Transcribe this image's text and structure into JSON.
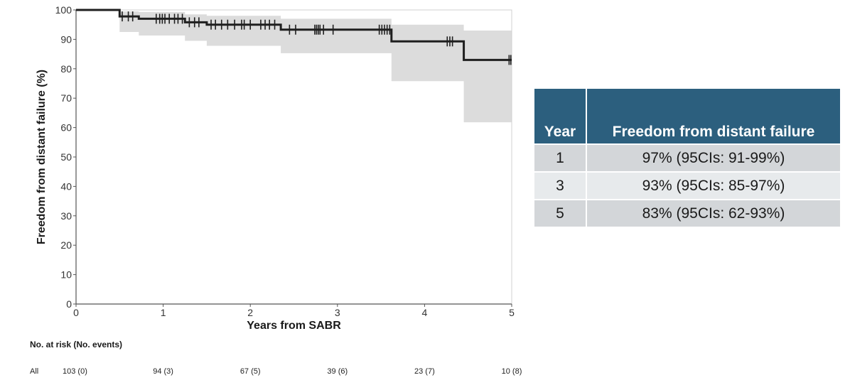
{
  "chart_data": {
    "type": "line",
    "subtype": "kaplan-meier",
    "xlabel": "Years from SABR",
    "ylabel": "Freedom from distant failure  (%)",
    "xlim": [
      0,
      5
    ],
    "ylim": [
      0,
      100
    ],
    "x_ticks": [
      "0",
      "1",
      "2",
      "3",
      "4",
      "5"
    ],
    "y_ticks": [
      "0",
      "10",
      "20",
      "30",
      "40",
      "50",
      "60",
      "70",
      "80",
      "90",
      "100"
    ],
    "grid": false,
    "line_color": "#1f1f1f",
    "ci_color": "#dcdcdc",
    "series": [
      {
        "steps": [
          {
            "x": 0,
            "y": 100
          },
          {
            "x": 0.5,
            "y": 97.8
          },
          {
            "x": 0.72,
            "y": 97
          },
          {
            "x": 1.25,
            "y": 95.8
          },
          {
            "x": 1.5,
            "y": 95
          },
          {
            "x": 2.35,
            "y": 93.3
          },
          {
            "x": 3.62,
            "y": 89.3
          },
          {
            "x": 4.45,
            "y": 83
          },
          {
            "x": 5,
            "y": 83
          }
        ],
        "ci_steps": [
          {
            "x": 0,
            "lower": 100,
            "upper": 100
          },
          {
            "x": 0.5,
            "lower": 92.5,
            "upper": 99.5
          },
          {
            "x": 0.72,
            "lower": 91.3,
            "upper": 99.3
          },
          {
            "x": 1.25,
            "lower": 89.5,
            "upper": 98.5
          },
          {
            "x": 1.5,
            "lower": 87.8,
            "upper": 98
          },
          {
            "x": 2.35,
            "lower": 85.3,
            "upper": 97
          },
          {
            "x": 3.62,
            "lower": 75.8,
            "upper": 95
          },
          {
            "x": 4.45,
            "lower": 61.8,
            "upper": 93
          },
          {
            "x": 5,
            "lower": 61.8,
            "upper": 93
          }
        ],
        "censor_marks": [
          {
            "x": 0.53,
            "y": 97.8
          },
          {
            "x": 0.6,
            "y": 97.8
          },
          {
            "x": 0.65,
            "y": 97.8
          },
          {
            "x": 0.92,
            "y": 97
          },
          {
            "x": 0.96,
            "y": 97
          },
          {
            "x": 0.99,
            "y": 97
          },
          {
            "x": 1.02,
            "y": 97
          },
          {
            "x": 1.07,
            "y": 97
          },
          {
            "x": 1.13,
            "y": 97
          },
          {
            "x": 1.17,
            "y": 97
          },
          {
            "x": 1.22,
            "y": 97
          },
          {
            "x": 1.3,
            "y": 95.8
          },
          {
            "x": 1.36,
            "y": 95.8
          },
          {
            "x": 1.41,
            "y": 95.8
          },
          {
            "x": 1.55,
            "y": 95
          },
          {
            "x": 1.6,
            "y": 95
          },
          {
            "x": 1.67,
            "y": 95
          },
          {
            "x": 1.74,
            "y": 95
          },
          {
            "x": 1.82,
            "y": 95
          },
          {
            "x": 1.9,
            "y": 95
          },
          {
            "x": 1.93,
            "y": 95
          },
          {
            "x": 2.0,
            "y": 95
          },
          {
            "x": 2.12,
            "y": 95
          },
          {
            "x": 2.17,
            "y": 95
          },
          {
            "x": 2.22,
            "y": 95
          },
          {
            "x": 2.28,
            "y": 95
          },
          {
            "x": 2.45,
            "y": 93.3
          },
          {
            "x": 2.52,
            "y": 93.3
          },
          {
            "x": 2.74,
            "y": 93.3
          },
          {
            "x": 2.76,
            "y": 93.3
          },
          {
            "x": 2.78,
            "y": 93.3
          },
          {
            "x": 2.8,
            "y": 93.3
          },
          {
            "x": 2.84,
            "y": 93.3
          },
          {
            "x": 2.95,
            "y": 93.3
          },
          {
            "x": 3.48,
            "y": 93.3
          },
          {
            "x": 3.51,
            "y": 93.3
          },
          {
            "x": 3.54,
            "y": 93.3
          },
          {
            "x": 3.57,
            "y": 93.3
          },
          {
            "x": 3.6,
            "y": 93.3
          },
          {
            "x": 4.26,
            "y": 89.3
          },
          {
            "x": 4.29,
            "y": 89.3
          },
          {
            "x": 4.32,
            "y": 89.3
          },
          {
            "x": 4.97,
            "y": 83
          },
          {
            "x": 4.99,
            "y": 83
          }
        ]
      }
    ]
  },
  "risk_table": {
    "title": "No. at risk (No. events)",
    "row_label": "All",
    "cells": [
      {
        "x": 0,
        "text": "103 (0)"
      },
      {
        "x": 1,
        "text": "94 (3)"
      },
      {
        "x": 2,
        "text": "67 (5)"
      },
      {
        "x": 3,
        "text": "39 (6)"
      },
      {
        "x": 4,
        "text": "23 (7)"
      },
      {
        "x": 5,
        "text": "10 (8)"
      }
    ]
  },
  "summary_table": {
    "header_year": "Year",
    "header_value": "Freedom from distant failure",
    "header_color": "#2c5f7e",
    "rows": [
      {
        "year": "1",
        "value": "97% (95CIs: 91-99%)"
      },
      {
        "year": "3",
        "value": "93% (95CIs: 85-97%)"
      },
      {
        "year": "5",
        "value": "83% (95CIs: 62-93%)"
      }
    ]
  }
}
